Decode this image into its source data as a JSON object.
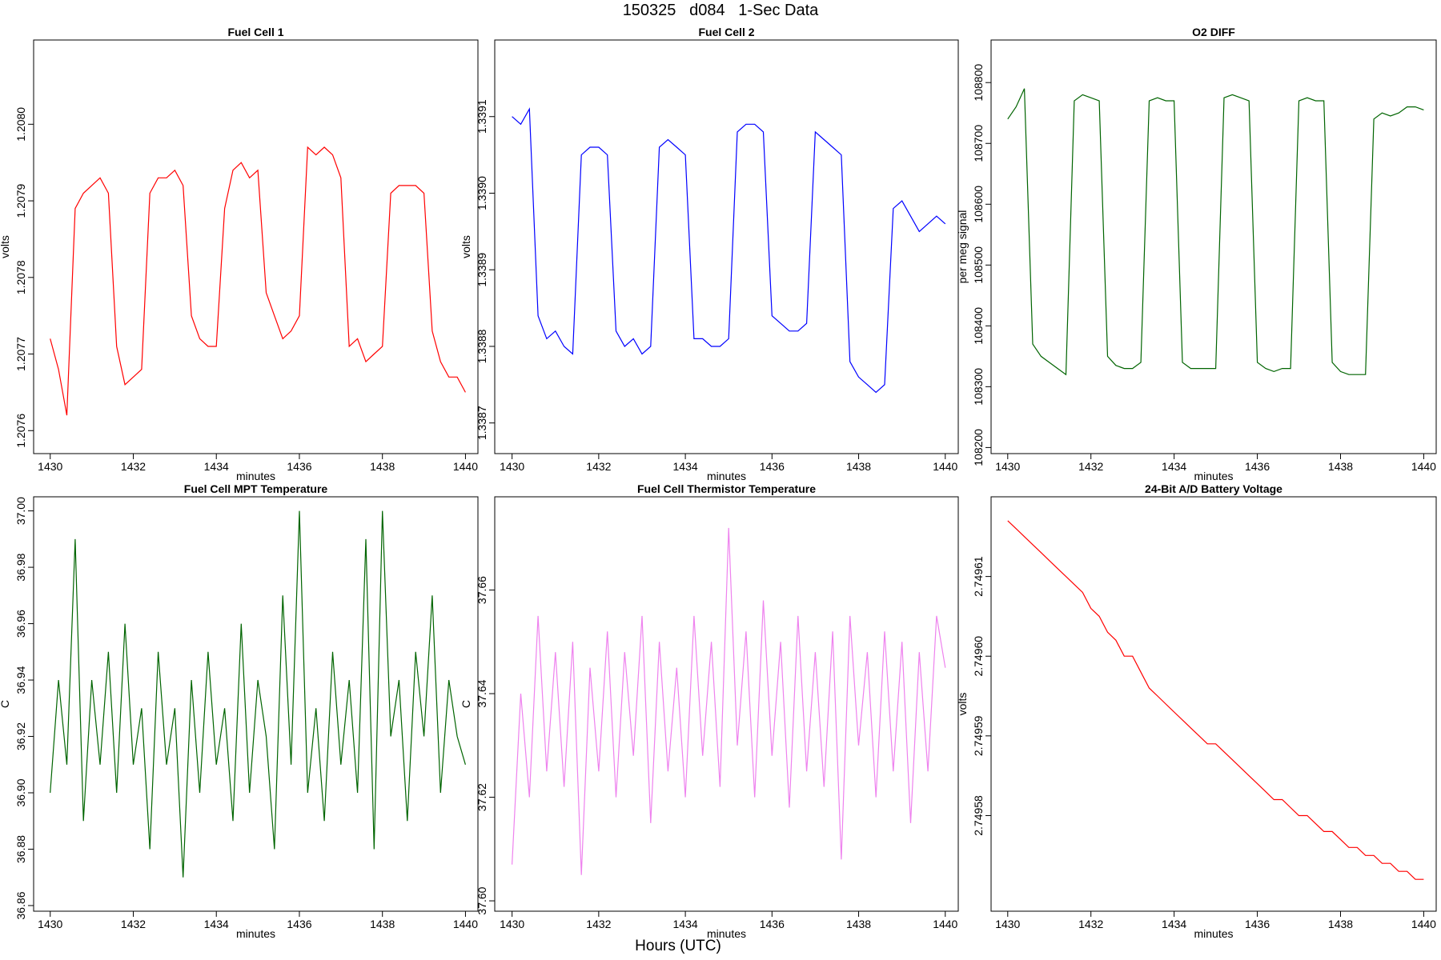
{
  "figure": {
    "title": "150325   d084   1-Sec Data",
    "footer_label": "Hours (UTC)"
  },
  "chart_data": [
    {
      "type": "line",
      "title": "Fuel Cell 1",
      "xlabel": "minutes",
      "ylabel": "volts",
      "color": "#ff0000",
      "xlim": [
        1429.6,
        1440.3
      ],
      "ylim": [
        1.20757,
        1.20811
      ],
      "xticks": [
        1430,
        1432,
        1434,
        1436,
        1438,
        1440
      ],
      "yticks": [
        1.2076,
        1.2077,
        1.2078,
        1.2079,
        1.208
      ],
      "ytick_labels": [
        "1.2076",
        "1.2077",
        "1.2078",
        "1.2079",
        "1.2080"
      ],
      "series": [
        {
          "x": [
            1430.0,
            1430.2,
            1430.4,
            1430.6,
            1430.8,
            1431.0,
            1431.2,
            1431.4,
            1431.6,
            1431.8,
            1432.0,
            1432.2,
            1432.4,
            1432.6,
            1432.8,
            1433.0,
            1433.2,
            1433.4,
            1433.6,
            1433.8,
            1434.0,
            1434.2,
            1434.4,
            1434.6,
            1434.8,
            1435.0,
            1435.2,
            1435.4,
            1435.6,
            1435.8,
            1436.0,
            1436.2,
            1436.4,
            1436.6,
            1436.8,
            1437.0,
            1437.2,
            1437.4,
            1437.6,
            1437.8,
            1438.0,
            1438.2,
            1438.4,
            1438.6,
            1438.8,
            1439.0,
            1439.2,
            1439.4,
            1439.6,
            1439.8,
            1440.0
          ],
          "y": [
            1.20772,
            1.20768,
            1.20762,
            1.20789,
            1.20791,
            1.20792,
            1.20793,
            1.20791,
            1.20771,
            1.20766,
            1.20767,
            1.20768,
            1.20791,
            1.20793,
            1.20793,
            1.20794,
            1.20792,
            1.20775,
            1.20772,
            1.20771,
            1.20771,
            1.20789,
            1.20794,
            1.20795,
            1.20793,
            1.20794,
            1.20778,
            1.20775,
            1.20772,
            1.20773,
            1.20775,
            1.20797,
            1.20796,
            1.20797,
            1.20796,
            1.20793,
            1.20771,
            1.20772,
            1.20769,
            1.2077,
            1.20771,
            1.20791,
            1.20792,
            1.20792,
            1.20792,
            1.20791,
            1.20773,
            1.20769,
            1.20767,
            1.20767,
            1.20765
          ]
        }
      ]
    },
    {
      "type": "line",
      "title": "Fuel Cell 2",
      "xlabel": "minutes",
      "ylabel": "volts",
      "color": "#0000ff",
      "xlim": [
        1429.6,
        1440.3
      ],
      "ylim": [
        1.33866,
        1.3392
      ],
      "xticks": [
        1430,
        1432,
        1434,
        1436,
        1438,
        1440
      ],
      "yticks": [
        1.3387,
        1.3388,
        1.3389,
        1.339,
        1.3391
      ],
      "ytick_labels": [
        "1.3387",
        "1.3388",
        "1.3389",
        "1.3390",
        "1.3391"
      ],
      "series": [
        {
          "x": [
            1430.0,
            1430.2,
            1430.4,
            1430.6,
            1430.8,
            1431.0,
            1431.2,
            1431.4,
            1431.6,
            1431.8,
            1432.0,
            1432.2,
            1432.4,
            1432.6,
            1432.8,
            1433.0,
            1433.2,
            1433.4,
            1433.6,
            1433.8,
            1434.0,
            1434.2,
            1434.4,
            1434.6,
            1434.8,
            1435.0,
            1435.2,
            1435.4,
            1435.6,
            1435.8,
            1436.0,
            1436.2,
            1436.4,
            1436.6,
            1436.8,
            1437.0,
            1437.2,
            1437.4,
            1437.6,
            1437.8,
            1438.0,
            1438.2,
            1438.4,
            1438.6,
            1438.8,
            1439.0,
            1439.2,
            1439.4,
            1439.6,
            1439.8,
            1440.0
          ],
          "y": [
            1.3391,
            1.33909,
            1.33911,
            1.33884,
            1.33881,
            1.33882,
            1.3388,
            1.33879,
            1.33905,
            1.33906,
            1.33906,
            1.33905,
            1.33882,
            1.3388,
            1.33881,
            1.33879,
            1.3388,
            1.33906,
            1.33907,
            1.33906,
            1.33905,
            1.33881,
            1.33881,
            1.3388,
            1.3388,
            1.33881,
            1.33908,
            1.33909,
            1.33909,
            1.33908,
            1.33884,
            1.33883,
            1.33882,
            1.33882,
            1.33883,
            1.33908,
            1.33907,
            1.33906,
            1.33905,
            1.33878,
            1.33876,
            1.33875,
            1.33874,
            1.33875,
            1.33898,
            1.33899,
            1.33897,
            1.33895,
            1.33896,
            1.33897,
            1.33896
          ]
        }
      ]
    },
    {
      "type": "line",
      "title": "O2 DIFF",
      "xlabel": "minutes",
      "ylabel": "per meg signal",
      "color": "#006400",
      "xlim": [
        1429.6,
        1440.3
      ],
      "ylim": [
        108190,
        108870
      ],
      "xticks": [
        1430,
        1432,
        1434,
        1436,
        1438,
        1440
      ],
      "yticks": [
        108200,
        108300,
        108400,
        108500,
        108600,
        108700,
        108800
      ],
      "ytick_labels": [
        "108200",
        "108300",
        "108400",
        "108500",
        "108600",
        "108700",
        "108800"
      ],
      "series": [
        {
          "x": [
            1430.0,
            1430.2,
            1430.4,
            1430.6,
            1430.8,
            1431.0,
            1431.2,
            1431.4,
            1431.6,
            1431.8,
            1432.0,
            1432.2,
            1432.4,
            1432.6,
            1432.8,
            1433.0,
            1433.2,
            1433.4,
            1433.6,
            1433.8,
            1434.0,
            1434.2,
            1434.4,
            1434.6,
            1434.8,
            1435.0,
            1435.2,
            1435.4,
            1435.6,
            1435.8,
            1436.0,
            1436.2,
            1436.4,
            1436.6,
            1436.8,
            1437.0,
            1437.2,
            1437.4,
            1437.6,
            1437.8,
            1438.0,
            1438.2,
            1438.4,
            1438.6,
            1438.8,
            1439.0,
            1439.2,
            1439.4,
            1439.6,
            1439.8,
            1440.0
          ],
          "y": [
            108740,
            108760,
            108790,
            108370,
            108350,
            108340,
            108330,
            108320,
            108770,
            108780,
            108775,
            108770,
            108350,
            108335,
            108330,
            108330,
            108340,
            108770,
            108775,
            108770,
            108770,
            108340,
            108330,
            108330,
            108330,
            108330,
            108775,
            108780,
            108775,
            108770,
            108340,
            108330,
            108325,
            108330,
            108330,
            108770,
            108775,
            108770,
            108770,
            108340,
            108325,
            108320,
            108320,
            108320,
            108740,
            108750,
            108745,
            108750,
            108760,
            108760,
            108755
          ]
        }
      ]
    },
    {
      "type": "line",
      "title": "Fuel Cell MPT Temperature",
      "xlabel": "minutes",
      "ylabel": "C",
      "color": "#006400",
      "xlim": [
        1429.6,
        1440.3
      ],
      "ylim": [
        36.858,
        37.005
      ],
      "xticks": [
        1430,
        1432,
        1434,
        1436,
        1438,
        1440
      ],
      "yticks": [
        36.86,
        36.88,
        36.9,
        36.92,
        36.94,
        36.96,
        36.98,
        37.0
      ],
      "ytick_labels": [
        "36.86",
        "36.88",
        "36.90",
        "36.92",
        "36.94",
        "36.96",
        "36.98",
        "37.00"
      ],
      "series": [
        {
          "x": [
            1430.0,
            1430.2,
            1430.4,
            1430.6,
            1430.8,
            1431.0,
            1431.2,
            1431.4,
            1431.6,
            1431.8,
            1432.0,
            1432.2,
            1432.4,
            1432.6,
            1432.8,
            1433.0,
            1433.2,
            1433.4,
            1433.6,
            1433.8,
            1434.0,
            1434.2,
            1434.4,
            1434.6,
            1434.8,
            1435.0,
            1435.2,
            1435.4,
            1435.6,
            1435.8,
            1436.0,
            1436.2,
            1436.4,
            1436.6,
            1436.8,
            1437.0,
            1437.2,
            1437.4,
            1437.6,
            1437.8,
            1438.0,
            1438.2,
            1438.4,
            1438.6,
            1438.8,
            1439.0,
            1439.2,
            1439.4,
            1439.6,
            1439.8,
            1440.0
          ],
          "y": [
            36.9,
            36.94,
            36.91,
            36.99,
            36.89,
            36.94,
            36.91,
            36.95,
            36.9,
            36.96,
            36.91,
            36.93,
            36.88,
            36.95,
            36.91,
            36.93,
            36.87,
            36.94,
            36.9,
            36.95,
            36.91,
            36.93,
            36.89,
            36.96,
            36.9,
            36.94,
            36.92,
            36.88,
            36.97,
            36.91,
            37.0,
            36.9,
            36.93,
            36.89,
            36.95,
            36.91,
            36.94,
            36.9,
            36.99,
            36.88,
            37.0,
            36.92,
            36.94,
            36.89,
            36.95,
            36.92,
            36.97,
            36.9,
            36.94,
            36.92,
            36.91
          ]
        }
      ]
    },
    {
      "type": "line",
      "title": "Fuel Cell Thermistor Temperature",
      "xlabel": "minutes",
      "ylabel": "C",
      "color": "#ee82ee",
      "xlim": [
        1429.6,
        1440.3
      ],
      "ylim": [
        37.598,
        37.678
      ],
      "xticks": [
        1430,
        1432,
        1434,
        1436,
        1438,
        1440
      ],
      "yticks": [
        37.6,
        37.62,
        37.64,
        37.66
      ],
      "ytick_labels": [
        "37.60",
        "37.62",
        "37.64",
        "37.66"
      ],
      "series": [
        {
          "x": [
            1430.0,
            1430.2,
            1430.4,
            1430.6,
            1430.8,
            1431.0,
            1431.2,
            1431.4,
            1431.6,
            1431.8,
            1432.0,
            1432.2,
            1432.4,
            1432.6,
            1432.8,
            1433.0,
            1433.2,
            1433.4,
            1433.6,
            1433.8,
            1434.0,
            1434.2,
            1434.4,
            1434.6,
            1434.8,
            1435.0,
            1435.2,
            1435.4,
            1435.6,
            1435.8,
            1436.0,
            1436.2,
            1436.4,
            1436.6,
            1436.8,
            1437.0,
            1437.2,
            1437.4,
            1437.6,
            1437.8,
            1438.0,
            1438.2,
            1438.4,
            1438.6,
            1438.8,
            1439.0,
            1439.2,
            1439.4,
            1439.6,
            1439.8,
            1440.0
          ],
          "y": [
            37.607,
            37.64,
            37.62,
            37.655,
            37.625,
            37.648,
            37.622,
            37.65,
            37.605,
            37.645,
            37.625,
            37.652,
            37.62,
            37.648,
            37.628,
            37.655,
            37.615,
            37.65,
            37.625,
            37.645,
            37.62,
            37.655,
            37.628,
            37.65,
            37.622,
            37.672,
            37.63,
            37.652,
            37.62,
            37.658,
            37.628,
            37.65,
            37.618,
            37.655,
            37.625,
            37.648,
            37.622,
            37.652,
            37.608,
            37.655,
            37.63,
            37.648,
            37.62,
            37.652,
            37.625,
            37.65,
            37.615,
            37.648,
            37.625,
            37.655,
            37.645
          ]
        }
      ]
    },
    {
      "type": "line",
      "title": "24-Bit A/D Battery Voltage",
      "xlabel": "minutes",
      "ylabel": "volts",
      "color": "#ff0000",
      "xlim": [
        1429.6,
        1440.3
      ],
      "ylim": [
        2.749568,
        2.74962
      ],
      "xticks": [
        1430,
        1432,
        1434,
        1436,
        1438,
        1440
      ],
      "yticks": [
        2.74958,
        2.74959,
        2.7496,
        2.74961
      ],
      "ytick_labels": [
        "2.74958",
        "2.74959",
        "2.74960",
        "2.74961"
      ],
      "series": [
        {
          "x": [
            1430.0,
            1430.2,
            1430.4,
            1430.6,
            1430.8,
            1431.0,
            1431.2,
            1431.4,
            1431.6,
            1431.8,
            1432.0,
            1432.2,
            1432.4,
            1432.6,
            1432.8,
            1433.0,
            1433.2,
            1433.4,
            1433.6,
            1433.8,
            1434.0,
            1434.2,
            1434.4,
            1434.6,
            1434.8,
            1435.0,
            1435.2,
            1435.4,
            1435.6,
            1435.8,
            1436.0,
            1436.2,
            1436.4,
            1436.6,
            1436.8,
            1437.0,
            1437.2,
            1437.4,
            1437.6,
            1437.8,
            1438.0,
            1438.2,
            1438.4,
            1438.6,
            1438.8,
            1439.0,
            1439.2,
            1439.4,
            1439.6,
            1439.8,
            1440.0
          ],
          "y": [
            2.749617,
            2.749616,
            2.749615,
            2.749614,
            2.749613,
            2.749612,
            2.749611,
            2.74961,
            2.749609,
            2.749608,
            2.749606,
            2.749605,
            2.749603,
            2.749602,
            2.7496,
            2.7496,
            2.749598,
            2.749596,
            2.749595,
            2.749594,
            2.749593,
            2.749592,
            2.749591,
            2.74959,
            2.749589,
            2.749589,
            2.749588,
            2.749587,
            2.749586,
            2.749585,
            2.749584,
            2.749583,
            2.749582,
            2.749582,
            2.749581,
            2.74958,
            2.74958,
            2.749579,
            2.749578,
            2.749578,
            2.749577,
            2.749576,
            2.749576,
            2.749575,
            2.749575,
            2.749574,
            2.749574,
            2.749573,
            2.749573,
            2.749572,
            2.749572
          ]
        }
      ]
    }
  ]
}
